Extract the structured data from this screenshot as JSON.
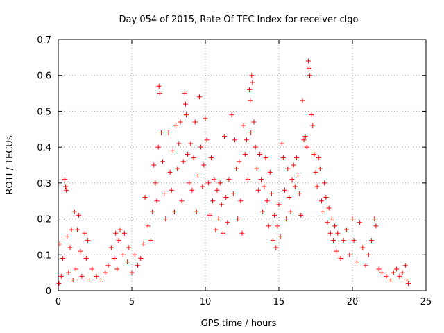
{
  "chart_data": {
    "type": "scatter",
    "title": "Day 054 of 2015, Rate Of TEC Index for receiver clgo",
    "xlabel": "GPS time / hours",
    "ylabel": "ROTI / TECUs",
    "xlim": [
      0,
      25
    ],
    "ylim": [
      0,
      0.7
    ],
    "xticks": [
      0,
      5,
      10,
      15,
      20,
      25
    ],
    "xtick_labels": [
      "0",
      "5",
      "10",
      "15",
      "20",
      "25"
    ],
    "yticks": [
      0,
      0.1,
      0.2,
      0.3,
      0.4,
      0.5,
      0.6,
      0.7
    ],
    "ytick_labels": [
      "0",
      "0.1",
      "0.2",
      "0.3",
      "0.4",
      "0.5",
      "0.6",
      "0.7"
    ],
    "grid": true,
    "marker": "+",
    "color": "#ff0000",
    "series": [
      {
        "name": "ROTI",
        "points": [
          [
            0.05,
            0.02
          ],
          [
            0.1,
            0.13
          ],
          [
            0.2,
            0.04
          ],
          [
            0.3,
            0.09
          ],
          [
            0.45,
            0.31
          ],
          [
            0.5,
            0.29
          ],
          [
            0.55,
            0.28
          ],
          [
            0.6,
            0.15
          ],
          [
            0.7,
            0.05
          ],
          [
            0.8,
            0.12
          ],
          [
            0.9,
            0.17
          ],
          [
            1.0,
            0.03
          ],
          [
            1.1,
            0.22
          ],
          [
            1.2,
            0.06
          ],
          [
            1.3,
            0.17
          ],
          [
            1.4,
            0.21
          ],
          [
            1.5,
            0.11
          ],
          [
            1.6,
            0.04
          ],
          [
            1.8,
            0.16
          ],
          [
            1.9,
            0.09
          ],
          [
            2.0,
            0.14
          ],
          [
            2.1,
            0.03
          ],
          [
            2.3,
            0.06
          ],
          [
            2.6,
            0.04
          ],
          [
            2.9,
            0.03
          ],
          [
            3.2,
            0.05
          ],
          [
            3.4,
            0.07
          ],
          [
            3.6,
            0.12
          ],
          [
            3.8,
            0.09
          ],
          [
            3.9,
            0.16
          ],
          [
            4.0,
            0.06
          ],
          [
            4.1,
            0.14
          ],
          [
            4.2,
            0.17
          ],
          [
            4.4,
            0.1
          ],
          [
            4.5,
            0.16
          ],
          [
            4.7,
            0.08
          ],
          [
            4.8,
            0.12
          ],
          [
            5.0,
            0.05
          ],
          [
            5.2,
            0.1
          ],
          [
            5.4,
            0.07
          ],
          [
            5.6,
            0.09
          ],
          [
            5.8,
            0.13
          ],
          [
            5.9,
            0.26
          ],
          [
            6.1,
            0.18
          ],
          [
            6.3,
            0.14
          ],
          [
            6.4,
            0.22
          ],
          [
            6.5,
            0.35
          ],
          [
            6.6,
            0.3
          ],
          [
            6.7,
            0.25
          ],
          [
            6.8,
            0.4
          ],
          [
            6.85,
            0.57
          ],
          [
            6.9,
            0.55
          ],
          [
            7.0,
            0.44
          ],
          [
            7.1,
            0.36
          ],
          [
            7.2,
            0.27
          ],
          [
            7.3,
            0.2
          ],
          [
            7.5,
            0.44
          ],
          [
            7.6,
            0.33
          ],
          [
            7.7,
            0.28
          ],
          [
            7.8,
            0.39
          ],
          [
            7.9,
            0.22
          ],
          [
            8.0,
            0.46
          ],
          [
            8.1,
            0.34
          ],
          [
            8.2,
            0.41
          ],
          [
            8.3,
            0.47
          ],
          [
            8.4,
            0.25
          ],
          [
            8.5,
            0.36
          ],
          [
            8.6,
            0.55
          ],
          [
            8.65,
            0.52
          ],
          [
            8.7,
            0.49
          ],
          [
            8.8,
            0.38
          ],
          [
            8.9,
            0.3
          ],
          [
            9.0,
            0.41
          ],
          [
            9.1,
            0.28
          ],
          [
            9.2,
            0.37
          ],
          [
            9.3,
            0.47
          ],
          [
            9.4,
            0.22
          ],
          [
            9.5,
            0.32
          ],
          [
            9.6,
            0.54
          ],
          [
            9.7,
            0.4
          ],
          [
            9.8,
            0.29
          ],
          [
            9.9,
            0.35
          ],
          [
            10.0,
            0.48
          ],
          [
            10.1,
            0.42
          ],
          [
            10.2,
            0.3
          ],
          [
            10.3,
            0.21
          ],
          [
            10.4,
            0.37
          ],
          [
            10.5,
            0.25
          ],
          [
            10.6,
            0.31
          ],
          [
            10.7,
            0.17
          ],
          [
            10.8,
            0.28
          ],
          [
            10.9,
            0.2
          ],
          [
            11.0,
            0.3
          ],
          [
            11.1,
            0.24
          ],
          [
            11.2,
            0.16
          ],
          [
            11.3,
            0.43
          ],
          [
            11.4,
            0.26
          ],
          [
            11.5,
            0.19
          ],
          [
            11.6,
            0.31
          ],
          [
            11.8,
            0.49
          ],
          [
            11.9,
            0.27
          ],
          [
            12.0,
            0.42
          ],
          [
            12.1,
            0.34
          ],
          [
            12.2,
            0.2
          ],
          [
            12.3,
            0.36
          ],
          [
            12.4,
            0.25
          ],
          [
            12.5,
            0.16
          ],
          [
            12.6,
            0.46
          ],
          [
            12.7,
            0.38
          ],
          [
            12.8,
            0.42
          ],
          [
            12.9,
            0.31
          ],
          [
            13.0,
            0.56
          ],
          [
            13.05,
            0.53
          ],
          [
            13.1,
            0.44
          ],
          [
            13.15,
            0.6
          ],
          [
            13.2,
            0.58
          ],
          [
            13.3,
            0.47
          ],
          [
            13.4,
            0.4
          ],
          [
            13.5,
            0.34
          ],
          [
            13.6,
            0.28
          ],
          [
            13.7,
            0.38
          ],
          [
            13.8,
            0.31
          ],
          [
            13.9,
            0.22
          ],
          [
            14.0,
            0.29
          ],
          [
            14.1,
            0.37
          ],
          [
            14.2,
            0.25
          ],
          [
            14.3,
            0.18
          ],
          [
            14.4,
            0.33
          ],
          [
            14.5,
            0.27
          ],
          [
            14.6,
            0.14
          ],
          [
            14.7,
            0.21
          ],
          [
            14.8,
            0.12
          ],
          [
            14.9,
            0.18
          ],
          [
            15.0,
            0.24
          ],
          [
            15.1,
            0.15
          ],
          [
            15.2,
            0.41
          ],
          [
            15.3,
            0.37
          ],
          [
            15.4,
            0.28
          ],
          [
            15.5,
            0.2
          ],
          [
            15.6,
            0.34
          ],
          [
            15.7,
            0.26
          ],
          [
            15.8,
            0.22
          ],
          [
            15.9,
            0.31
          ],
          [
            16.0,
            0.35
          ],
          [
            16.1,
            0.29
          ],
          [
            16.2,
            0.37
          ],
          [
            16.3,
            0.32
          ],
          [
            16.4,
            0.27
          ],
          [
            16.5,
            0.21
          ],
          [
            16.6,
            0.53
          ],
          [
            16.7,
            0.42
          ],
          [
            16.8,
            0.43
          ],
          [
            16.9,
            0.4
          ],
          [
            17.0,
            0.64
          ],
          [
            17.05,
            0.62
          ],
          [
            17.1,
            0.6
          ],
          [
            17.2,
            0.49
          ],
          [
            17.3,
            0.46
          ],
          [
            17.4,
            0.38
          ],
          [
            17.5,
            0.33
          ],
          [
            17.6,
            0.29
          ],
          [
            17.7,
            0.37
          ],
          [
            17.8,
            0.34
          ],
          [
            17.9,
            0.25
          ],
          [
            18.0,
            0.22
          ],
          [
            18.1,
            0.3
          ],
          [
            18.2,
            0.26
          ],
          [
            18.3,
            0.19
          ],
          [
            18.4,
            0.23
          ],
          [
            18.5,
            0.16
          ],
          [
            18.6,
            0.2
          ],
          [
            18.7,
            0.14
          ],
          [
            18.8,
            0.18
          ],
          [
            18.9,
            0.11
          ],
          [
            19.0,
            0.16
          ],
          [
            19.2,
            0.09
          ],
          [
            19.4,
            0.14
          ],
          [
            19.6,
            0.17
          ],
          [
            19.8,
            0.1
          ],
          [
            20.0,
            0.2
          ],
          [
            20.1,
            0.14
          ],
          [
            20.3,
            0.08
          ],
          [
            20.5,
            0.19
          ],
          [
            20.7,
            0.12
          ],
          [
            20.9,
            0.07
          ],
          [
            21.1,
            0.1
          ],
          [
            21.3,
            0.14
          ],
          [
            21.5,
            0.2
          ],
          [
            21.6,
            0.18
          ],
          [
            21.8,
            0.06
          ],
          [
            22.0,
            0.05
          ],
          [
            22.3,
            0.04
          ],
          [
            22.6,
            0.03
          ],
          [
            22.8,
            0.05
          ],
          [
            23.0,
            0.06
          ],
          [
            23.2,
            0.04
          ],
          [
            23.4,
            0.05
          ],
          [
            23.6,
            0.07
          ],
          [
            23.7,
            0.03
          ],
          [
            23.8,
            0.02
          ]
        ]
      }
    ]
  }
}
